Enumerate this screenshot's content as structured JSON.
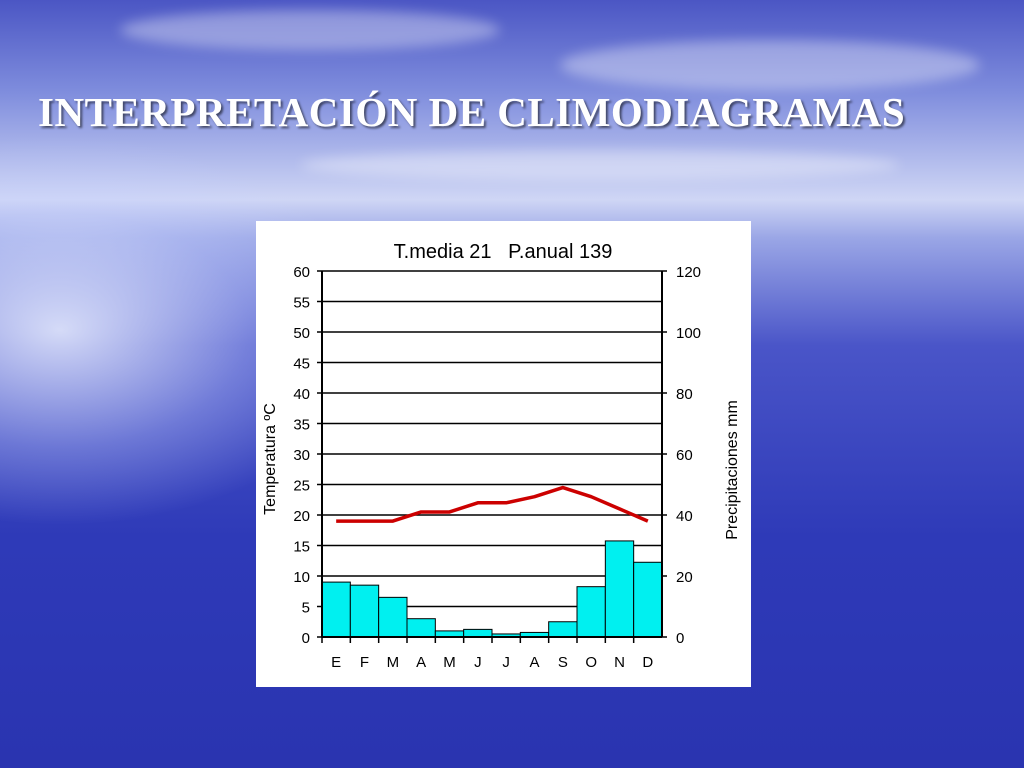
{
  "slide": {
    "title": "INTERPRETACIÓN DE CLIMODIAGRAMAS"
  },
  "chart_data": {
    "type": "bar",
    "title": "T.media 21   P.anual 139",
    "categories": [
      "E",
      "F",
      "M",
      "A",
      "M",
      "J",
      "J",
      "A",
      "S",
      "O",
      "N",
      "D"
    ],
    "series": [
      {
        "type": "bar",
        "axis": "right",
        "color": "#00f0f0",
        "values": [
          18,
          17,
          13,
          6,
          2,
          2.5,
          1,
          1.5,
          5,
          16.5,
          31.5,
          24.5
        ]
      },
      {
        "type": "line",
        "axis": "left",
        "color": "#cc0000",
        "values": [
          19,
          19,
          19,
          20.5,
          20.5,
          22,
          22,
          23,
          24.5,
          23,
          21,
          19
        ]
      }
    ],
    "ylabel_left": "Temperatura ºC",
    "ylabel_right": "Precipitaciones mm",
    "ylim_left": [
      0,
      60
    ],
    "ylim_right": [
      0,
      120
    ],
    "yticks_left": [
      "0",
      "5",
      "10",
      "15",
      "20",
      "25",
      "30",
      "35",
      "40",
      "45",
      "50",
      "55",
      "60"
    ],
    "yticks_right": [
      "0",
      "20",
      "40",
      "60",
      "80",
      "100",
      "120"
    ],
    "grid": true
  }
}
